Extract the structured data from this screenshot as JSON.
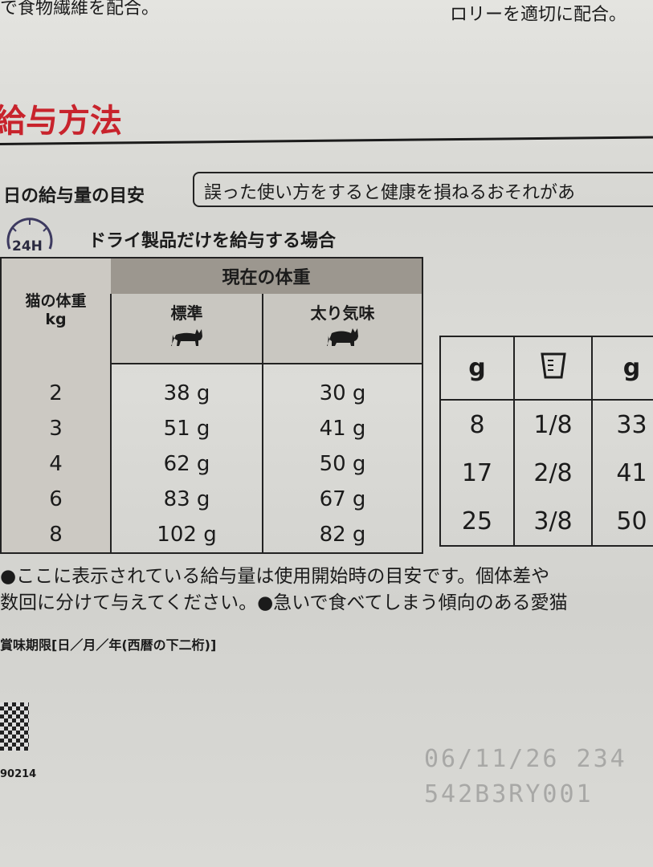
{
  "top_text": {
    "left": "で食物繊維を配合。",
    "right": "ロリーを適切に配合。"
  },
  "heading": "給与方法",
  "subheading": "日の給与量の目安",
  "warning": "誤った使い方をすると健康を損ねるおそれがあ",
  "clock_label": "24H",
  "dry_label": "ドライ製品だけを給与する場合",
  "table": {
    "group_header": "現在の体重",
    "weight_header": "猫の体重",
    "weight_unit": "kg",
    "col_standard": "標準",
    "col_overweight": "太り気味",
    "rows": [
      {
        "kg": "2",
        "standard": "38 g",
        "over": "30 g"
      },
      {
        "kg": "3",
        "standard": "51 g",
        "over": "41 g"
      },
      {
        "kg": "4",
        "standard": "62 g",
        "over": "50 g"
      },
      {
        "kg": "6",
        "standard": "83 g",
        "over": "67 g"
      },
      {
        "kg": "8",
        "standard": "102 g",
        "over": "82 g"
      }
    ]
  },
  "side_table": {
    "h1": "g",
    "h3": "g",
    "cup_icon": "measuring-cup-icon",
    "rows": [
      {
        "a": "8",
        "b": "1/8",
        "c": "33"
      },
      {
        "a": "17",
        "b": "2/8",
        "c": "41"
      },
      {
        "a": "25",
        "b": "3/8",
        "c": "50"
      }
    ]
  },
  "notes": [
    "●ここに表示されている給与量は使用開始時の目安です。個体差や",
    "数回に分けて与えてください。●急いで食べてしまう傾向のある愛猫"
  ],
  "best_before": "賞味期限[日／月／年(西暦の下二桁)]",
  "barcode_number": "90214",
  "stamp": {
    "date": "06/11/26  234",
    "lot": "542B3RY001"
  },
  "colors": {
    "heading_red": "#c8232c",
    "band_gray": "#9c978f"
  }
}
